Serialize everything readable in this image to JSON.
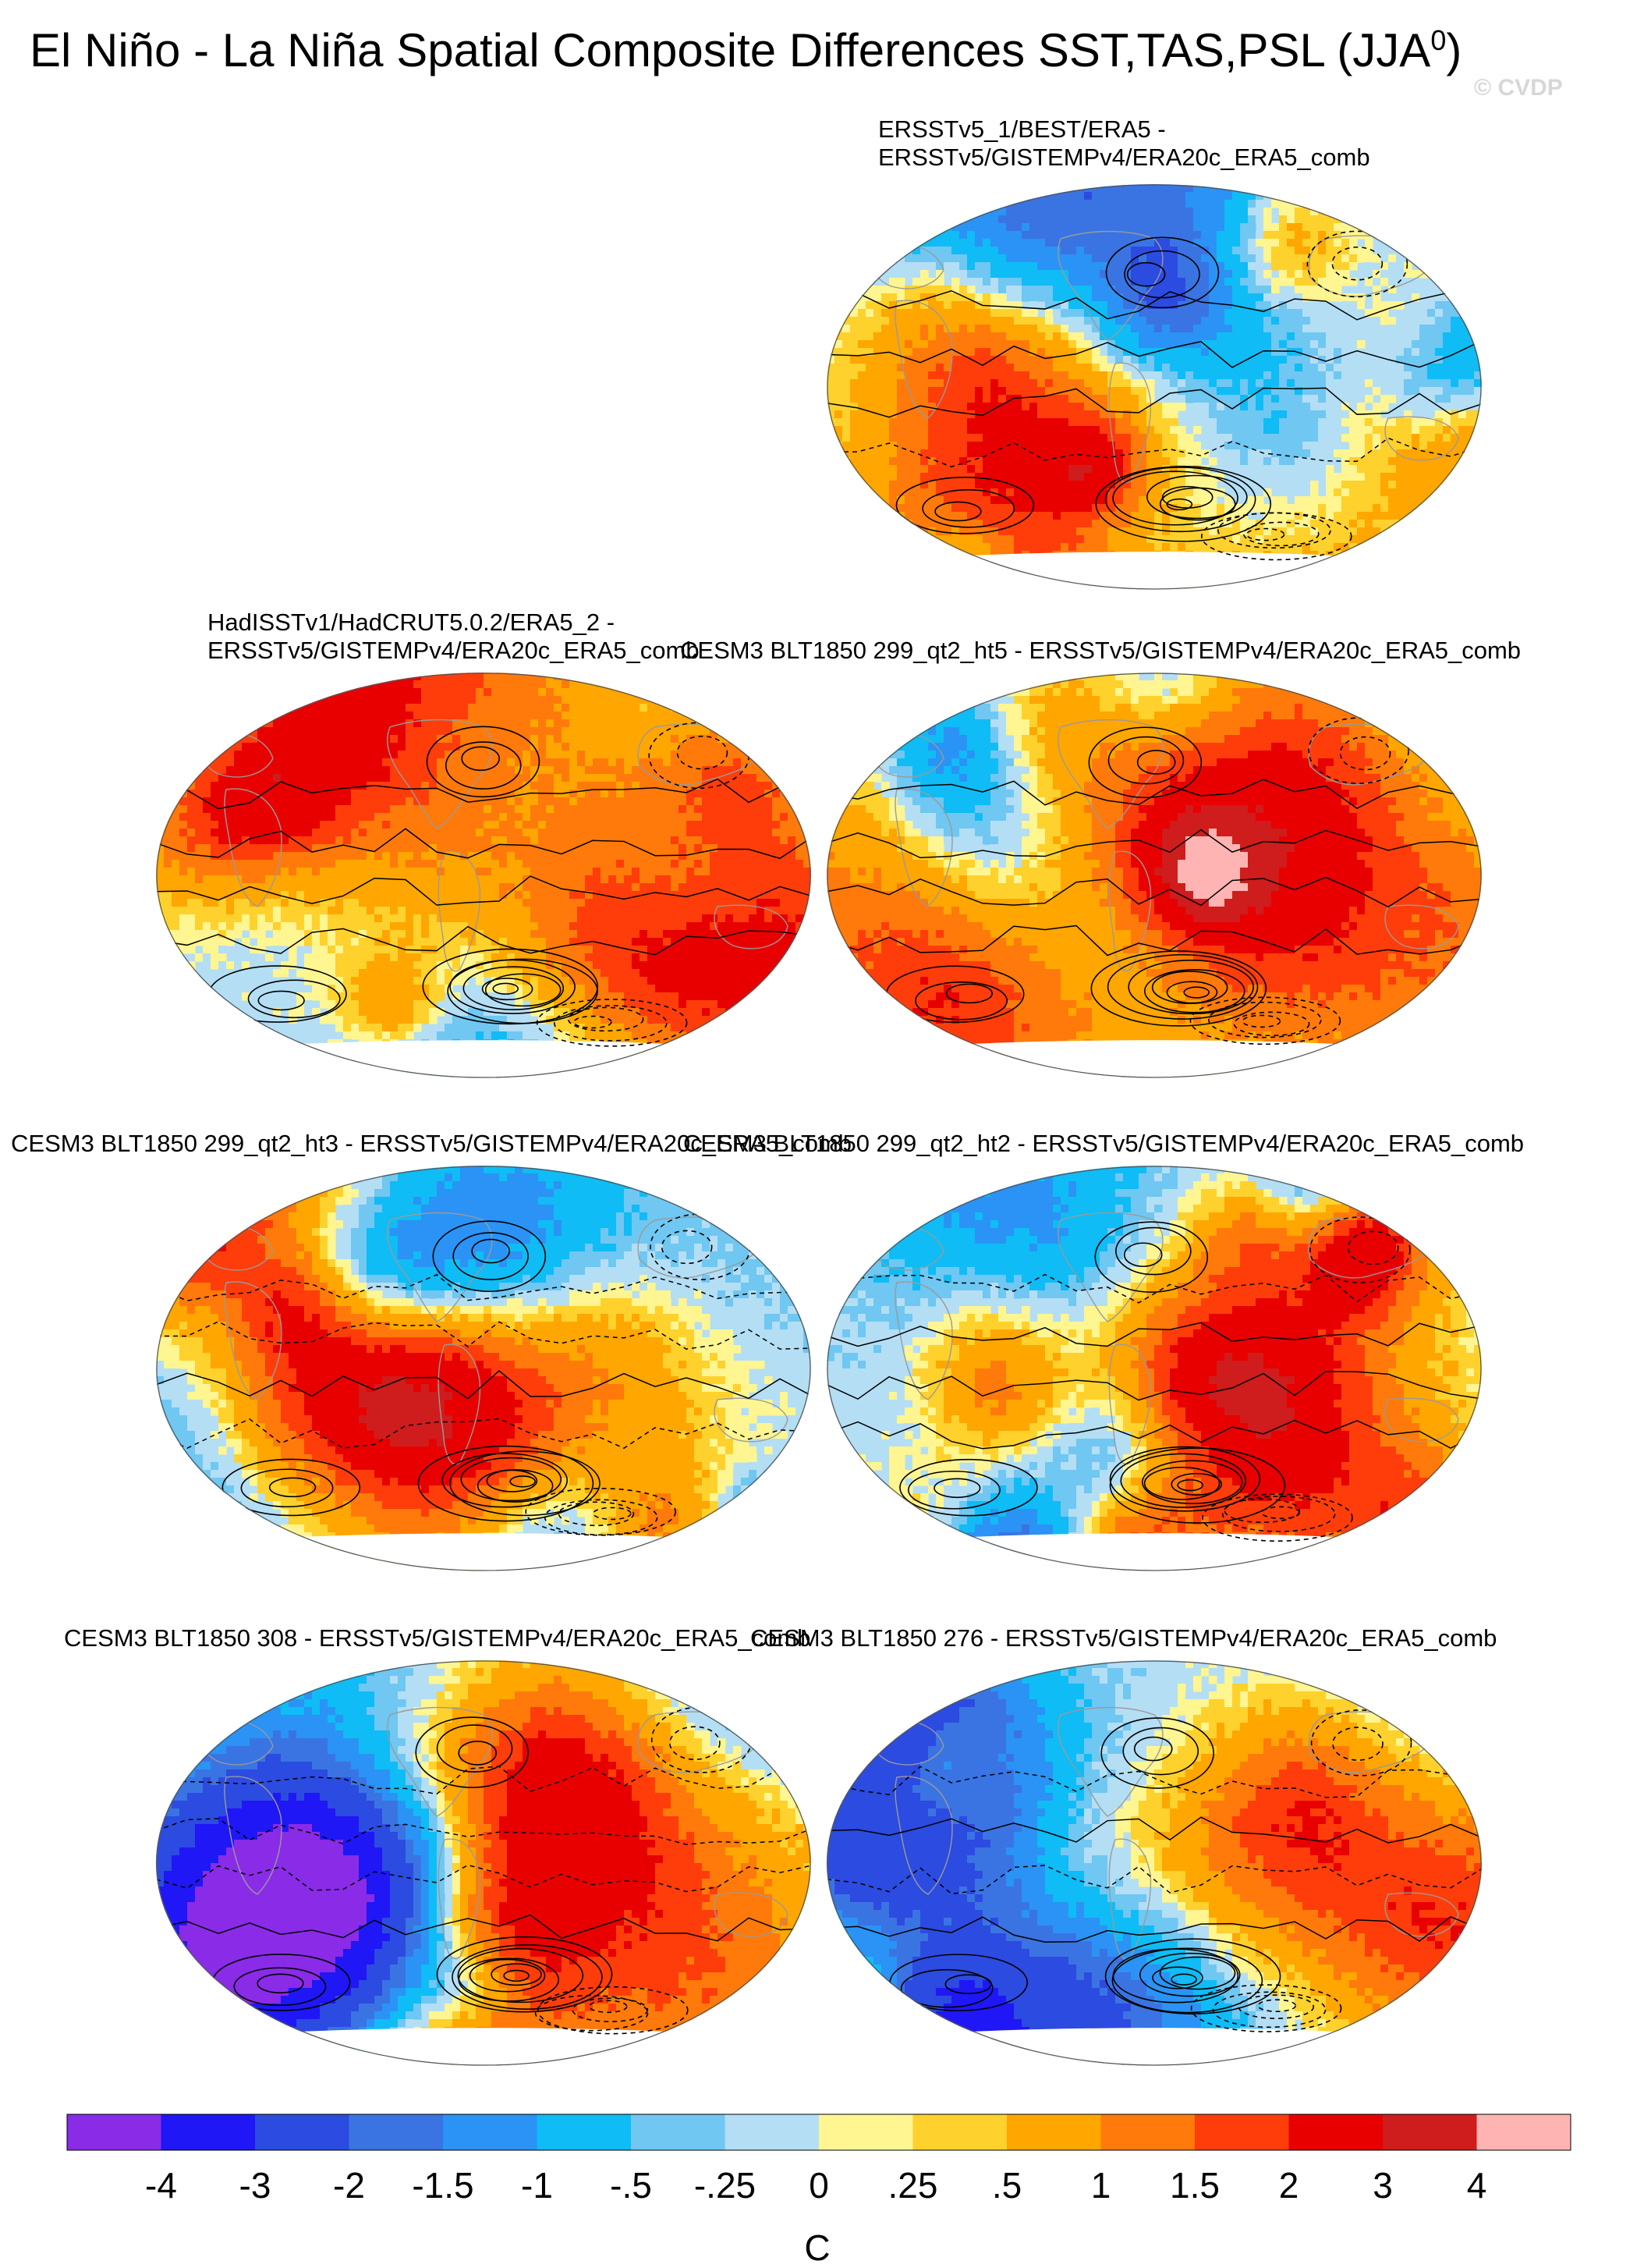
{
  "header": {
    "title": "El Niño - La Niña Spatial Composite Differences SST,TAS,PSL (JJA",
    "title_sup": "0",
    "title_close": ")",
    "watermark": "© CVDP"
  },
  "panels": [
    {
      "line1": "ERSSTv5_1/BEST/ERA5 -",
      "line2": "ERSSTv5/GISTEMPv4/ERA20c_ERA5_comb"
    },
    {
      "line1": "HadISSTv1/HadCRUT5.0.2/ERA5_2 -",
      "line2": "ERSSTv5/GISTEMPv4/ERA20c_ERA5_comb"
    },
    {
      "line1": "CESM3 BLT1850 299_qt2_ht5 - ERSSTv5/GISTEMPv4/ERA20c_ERA5_comb"
    },
    {
      "line1": "CESM3 BLT1850 299_qt2_ht3 - ERSSTv5/GISTEMPv4/ERA20c_ERA5_comb"
    },
    {
      "line1": "CESM3 BLT1850 299_qt2_ht2 - ERSSTv5/GISTEMPv4/ERA20c_ERA5_comb"
    },
    {
      "line1": "CESM3 BLT1850 308 - ERSSTv5/GISTEMPv4/ERA20c_ERA5_comb"
    },
    {
      "line1": "CESM3 BLT1850 276 - ERSSTv5/GISTEMPv4/ERA20c_ERA5_comb"
    }
  ],
  "chart_data": {
    "type": "heatmap",
    "projection": "robinson",
    "colorbar": {
      "labels": [
        "-4",
        "-3",
        "-2",
        "-1.5",
        "-1",
        "-.5",
        "-.25",
        "0",
        ".25",
        ".5",
        "1",
        "1.5",
        "2",
        "3",
        "4"
      ],
      "thresholds": [
        -4,
        -3,
        -2,
        -1.5,
        -1,
        -0.5,
        -0.25,
        0,
        0.25,
        0.5,
        1,
        1.5,
        2,
        3,
        4
      ],
      "colors": [
        "#8a2be8",
        "#1f17f5",
        "#2c4be0",
        "#3a74e3",
        "#2a93f5",
        "#0fbcf5",
        "#6fc7f2",
        "#b4def4",
        "#fff591",
        "#ffd12c",
        "#ffa600",
        "#ff7a0a",
        "#ff3d0a",
        "#e80000",
        "#cf1c1c",
        "#ffb4b4"
      ],
      "unit": "C"
    },
    "fields": [
      "SST",
      "TAS",
      "PSL"
    ],
    "season": "JJA"
  }
}
